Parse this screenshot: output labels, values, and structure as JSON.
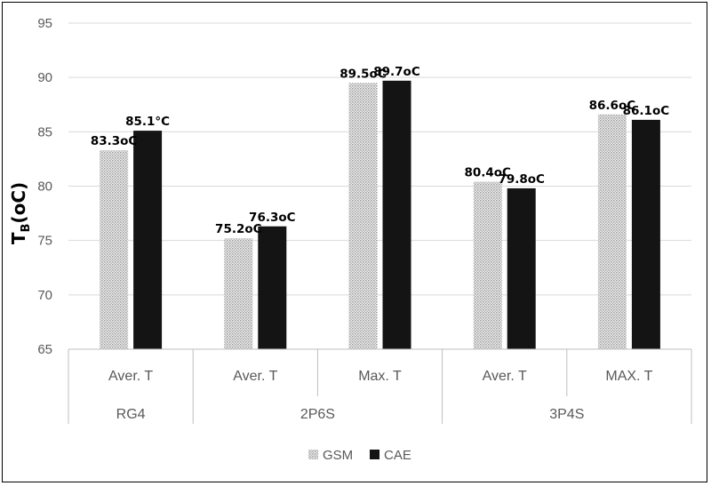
{
  "chart_data": {
    "type": "bar",
    "ylabel_main": "T",
    "ylabel_sub": "B",
    "ylabel_unit": "(oC)",
    "ylim": [
      65,
      95
    ],
    "yticks": [
      65,
      70,
      75,
      80,
      85,
      90,
      95
    ],
    "grid": true,
    "legend_position": "bottom",
    "categories": [
      "Aver. T",
      "Aver. T",
      "Max. T",
      "Aver. T",
      "MAX. T"
    ],
    "groups": [
      {
        "label": "RG4",
        "span": 1
      },
      {
        "label": "2P6S",
        "span": 2
      },
      {
        "label": "3P4S",
        "span": 2
      }
    ],
    "series": [
      {
        "name": "GSM",
        "values": [
          83.3,
          75.2,
          89.5,
          80.4,
          86.6
        ],
        "labels": [
          "83.3oC",
          "75.2oC",
          "89.5oC",
          "80.4oC",
          "86.6oC"
        ],
        "color": "#d4d4d4",
        "pattern": "dotted"
      },
      {
        "name": "CAE",
        "values": [
          85.1,
          76.3,
          89.7,
          79.8,
          86.1
        ],
        "labels": [
          "85.1°C",
          "76.3oC",
          "89.7oC",
          "79.8oC",
          "86.1oC"
        ],
        "color": "#141414",
        "pattern": "solid"
      }
    ]
  }
}
